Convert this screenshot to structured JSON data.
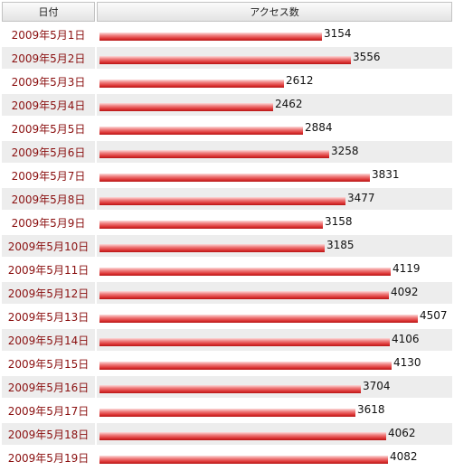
{
  "table": {
    "header_date": "日付",
    "header_access": "アクセス数"
  },
  "chart_data": {
    "type": "bar",
    "orientation": "horizontal",
    "categories": [
      "2009年5月1日",
      "2009年5月2日",
      "2009年5月3日",
      "2009年5月4日",
      "2009年5月5日",
      "2009年5月6日",
      "2009年5月7日",
      "2009年5月8日",
      "2009年5月9日",
      "2009年5月10日",
      "2009年5月11日",
      "2009年5月12日",
      "2009年5月13日",
      "2009年5月14日",
      "2009年5月15日",
      "2009年5月16日",
      "2009年5月17日",
      "2009年5月18日",
      "2009年5月19日"
    ],
    "values": [
      3154,
      3556,
      2612,
      2462,
      2884,
      3258,
      3831,
      3477,
      3158,
      3185,
      4119,
      4092,
      4507,
      4106,
      4130,
      3704,
      3618,
      4062,
      4082
    ],
    "xlabel": "",
    "ylabel": "",
    "bar_color": "#d42a2a",
    "date_color": "#8a0f0f",
    "alt_row_color": "#ededed"
  }
}
